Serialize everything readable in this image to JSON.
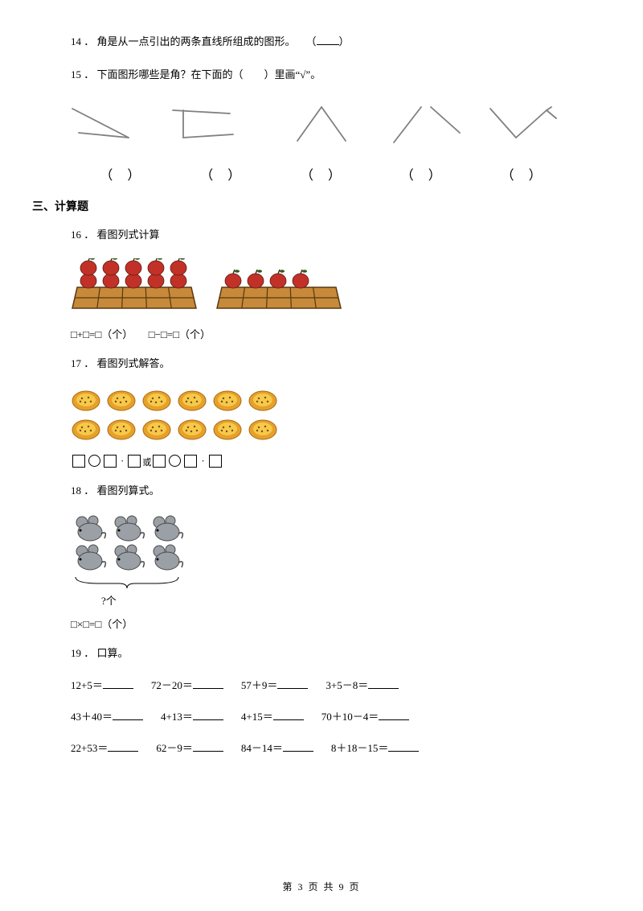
{
  "q14": {
    "num": "14 ．",
    "text": "角是从一点引出的两条直线所组成的图形。　　（",
    "trail": "）"
  },
  "q15": {
    "num": "15 ．",
    "text": "下面图形哪些是角？在下面的（　　）里画“√”。",
    "paren_left": "（",
    "paren_right": "）",
    "angle_stroke": "#808080",
    "angle_stroke_w": 1.8,
    "angles_svg_w": 640,
    "angles_svg_h": 70,
    "angles": [
      [
        [
          10,
          12
        ],
        [
          80,
          48
        ],
        [
          18,
          42
        ]
      ],
      [
        [
          150,
          14
        ],
        [
          220,
          18
        ],
        [
          150,
          50
        ]
      ],
      [
        [
          300,
          52
        ],
        [
          328,
          12
        ],
        [
          356,
          52
        ]
      ],
      [
        [
          420,
          54
        ],
        [
          450,
          12
        ]
      ],
      [
        [
          450,
          12
        ],
        [
          486,
          42
        ]
      ],
      [
        [
          450,
          12
        ],
        [
          454,
          12
        ]
      ],
      [
        [
          540,
          14
        ],
        [
          572,
          50
        ],
        [
          608,
          16
        ]
      ],
      [
        [
          132,
          40
        ],
        [
          132,
          40
        ]
      ]
    ],
    "lines": [
      {
        "pts": [
          [
            10,
            12
          ],
          [
            80,
            48
          ]
        ]
      },
      {
        "pts": [
          [
            80,
            48
          ],
          [
            18,
            42
          ]
        ]
      },
      {
        "pts": [
          [
            135,
            14
          ],
          [
            206,
            18
          ]
        ]
      },
      {
        "pts": [
          [
            148,
            14
          ],
          [
            148,
            48
          ]
        ]
      },
      {
        "pts": [
          [
            148,
            48
          ],
          [
            210,
            44
          ]
        ]
      },
      {
        "pts": [
          [
            290,
            52
          ],
          [
            320,
            10
          ]
        ]
      },
      {
        "pts": [
          [
            320,
            10
          ],
          [
            350,
            52
          ]
        ]
      },
      {
        "pts": [
          [
            410,
            54
          ],
          [
            444,
            10
          ]
        ]
      },
      {
        "pts": [
          [
            456,
            10
          ],
          [
            492,
            42
          ]
        ]
      },
      {
        "pts": [
          [
            530,
            12
          ],
          [
            562,
            48
          ]
        ]
      },
      {
        "pts": [
          [
            562,
            48
          ],
          [
            600,
            14
          ]
        ]
      },
      {
        "pts": [
          [
            600,
            14
          ],
          [
            612,
            24
          ]
        ]
      },
      {
        "pts": [
          [
            600,
            14
          ],
          [
            606,
            10
          ]
        ]
      }
    ]
  },
  "section3": "三、计算题",
  "q16": {
    "num": "16 ．",
    "text": "看图列式计算",
    "eq": "□+□=□（个）　　□−□=□（个）",
    "box_fill": "#c68a3a",
    "box_stroke": "#5a3810",
    "apple_fill": "#c23127",
    "apple_leaf": "#2e5a1e",
    "apple_stem": "#3a2a12",
    "box1_apples": 10,
    "box2_apples": 4
  },
  "q17": {
    "num": "17 ．",
    "text": "看图列式解答。",
    "tart_outer": "#e7a02a",
    "tart_inner": "#f5c94a",
    "tart_dot": "#7a4a12",
    "rows": [
      6,
      6
    ],
    "huo": "或"
  },
  "q18": {
    "num": "18 ．",
    "text": "看图列算式。",
    "eq": "□×□=□（个）",
    "mouse_fill": "#9aa0a6",
    "mouse_stroke": "#4a4a4a",
    "rows": [
      3,
      3
    ],
    "brace": "?个"
  },
  "q19": {
    "num": "19 ．",
    "text": "口算。",
    "rows": [
      [
        "12+5＝",
        "72－20＝",
        "57＋9＝",
        "3+5－8＝"
      ],
      [
        "43＋40＝",
        "4+13＝",
        "4+15＝",
        "70＋10－4＝"
      ],
      [
        "22+53＝",
        "62－9＝",
        "84－14＝",
        "8＋18－15＝"
      ]
    ]
  },
  "footer": "第 3 页 共 9 页"
}
